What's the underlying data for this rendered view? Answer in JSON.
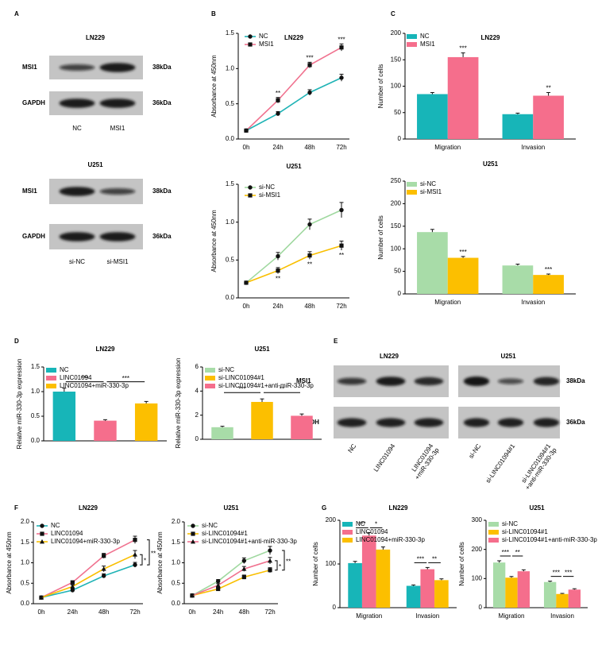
{
  "panels": [
    "A",
    "B",
    "C",
    "D",
    "E",
    "F",
    "G"
  ],
  "blots": [
    {
      "title": "LN229",
      "rows": [
        "MSI1",
        "GAPDH"
      ],
      "sizes": [
        "38kDa",
        "36kDa"
      ],
      "lanes": [
        "NC",
        "MSI1"
      ]
    },
    {
      "title": "U251",
      "rows": [
        "MSI1",
        "GAPDH"
      ],
      "sizes": [
        "38kDa",
        "36kDa"
      ],
      "lanes": [
        "si-NC",
        "si-MSI1"
      ]
    },
    {
      "title": "LN229",
      "rows": [
        "MSI1",
        "GAPDH"
      ],
      "lanes": [
        "NC",
        "LINC01094",
        "LINC01094\n+miR-330-3p"
      ]
    },
    {
      "title": "U251",
      "sizes": [
        "38kDa",
        "36kDa"
      ],
      "lanes": [
        "si-NC",
        "si-LINC01094#1",
        "si-LINC01094#1\n+anti-miR-330-3p"
      ]
    }
  ],
  "chart_data": [
    {
      "type": "line",
      "title": "LN229",
      "ylabel": "Absorbance at 450nm",
      "categories": [
        "0h",
        "24h",
        "48h",
        "72h"
      ],
      "ylim": [
        0,
        1.5
      ],
      "yticks": [
        {
          "value": 0,
          "label": "0.0"
        },
        {
          "value": 0.5,
          "label": "0.5"
        },
        {
          "value": 1,
          "label": "1.0"
        },
        {
          "value": 1.5,
          "label": "1.5"
        }
      ],
      "series": [
        {
          "name": "NC",
          "color": "#1fb3b5",
          "marker": "circle",
          "values": [
            0.12,
            0.36,
            0.66,
            0.87
          ],
          "errors": [
            0.02,
            0.03,
            0.04,
            0.05
          ]
        },
        {
          "name": "MSI1",
          "color": "#f0728f",
          "marker": "square",
          "values": [
            0.12,
            0.55,
            1.05,
            1.3
          ],
          "errors": [
            0.02,
            0.04,
            0.04,
            0.05
          ]
        }
      ],
      "annotations": [
        {
          "text": "**",
          "x": 1,
          "series": 1
        },
        {
          "text": "***",
          "x": 2,
          "series": 1
        },
        {
          "text": "***",
          "x": 3,
          "series": 1
        }
      ]
    },
    {
      "type": "line",
      "title": "U251",
      "ylabel": "Absorbance at 450nm",
      "categories": [
        "0h",
        "24h",
        "48h",
        "72h"
      ],
      "ylim": [
        0,
        1.5
      ],
      "yticks": [
        {
          "value": 0,
          "label": "0.0"
        },
        {
          "value": 0.5,
          "label": "0.5"
        },
        {
          "value": 1,
          "label": "1.0"
        },
        {
          "value": 1.5,
          "label": "1.5"
        }
      ],
      "series": [
        {
          "name": "si-NC",
          "color": "#9fd89f",
          "marker": "circle",
          "values": [
            0.2,
            0.55,
            0.97,
            1.16
          ],
          "errors": [
            0.02,
            0.05,
            0.07,
            0.1
          ]
        },
        {
          "name": "si-MSI1",
          "color": "#f9bf00",
          "marker": "square",
          "values": [
            0.2,
            0.36,
            0.56,
            0.69
          ],
          "errors": [
            0.02,
            0.04,
            0.05,
            0.06
          ]
        }
      ],
      "annotations": [
        {
          "text": "**",
          "x": 1,
          "series": 1
        },
        {
          "text": "**",
          "x": 2,
          "series": 1
        },
        {
          "text": "**",
          "x": 3,
          "series": 1
        }
      ]
    },
    {
      "type": "bar",
      "title": "LN229",
      "ylabel": "Number of cells",
      "categories": [
        "Migration",
        "Invasion"
      ],
      "ylim": [
        0,
        200
      ],
      "yticks": [
        0,
        50,
        100,
        150,
        200
      ],
      "series": [
        {
          "name": "NC",
          "color": "#17b5b8",
          "values": [
            85,
            47
          ],
          "errors": [
            3,
            2
          ]
        },
        {
          "name": "MSI1",
          "color": "#f56e8c",
          "values": [
            155,
            82
          ],
          "errors": [
            8,
            6
          ]
        }
      ],
      "annotations": [
        {
          "text": "***",
          "x": 0,
          "series": 1
        },
        {
          "text": "**",
          "x": 1,
          "series": 1
        }
      ]
    },
    {
      "type": "bar",
      "title": "U251",
      "ylabel": "Number of cells",
      "categories": [
        "Migration",
        "Invasion"
      ],
      "ylim": [
        0,
        250
      ],
      "yticks": [
        0,
        50,
        100,
        150,
        200,
        250
      ],
      "series": [
        {
          "name": "si-NC",
          "color": "#a8dca8",
          "values": [
            137,
            63
          ],
          "errors": [
            6,
            3
          ]
        },
        {
          "name": "si-MSI1",
          "color": "#fcbf00",
          "values": [
            80,
            42
          ],
          "errors": [
            3,
            2
          ]
        }
      ],
      "annotations": [
        {
          "text": "***",
          "x": 0,
          "series": 1
        },
        {
          "text": "***",
          "x": 1,
          "series": 1
        }
      ]
    },
    {
      "type": "bar",
      "title": "LN229",
      "ylabel": "Relative miR-330-3p expression",
      "categories": [
        "NC",
        "LINC01094",
        "LINC01094+miR-330-3p"
      ],
      "values": [
        1.0,
        0.41,
        0.76
      ],
      "errors": [
        0.07,
        0.02,
        0.04
      ],
      "colors": [
        "#17b5b8",
        "#f56e8c",
        "#fcbf00"
      ],
      "ylim": [
        0,
        1.5
      ],
      "yticks": [
        {
          "value": 0,
          "label": "0.0"
        },
        {
          "value": 0.5,
          "label": "0.5"
        },
        {
          "value": 1,
          "label": "1.0"
        },
        {
          "value": 1.5,
          "label": "1.5"
        }
      ],
      "annotations": [
        {
          "text": "***",
          "from": 0,
          "to": 1
        },
        {
          "text": "***",
          "from": 1,
          "to": 2
        }
      ]
    },
    {
      "type": "bar",
      "title": "U251",
      "ylabel": "Relative miR-330-3p expression",
      "categories": [
        "si-NC",
        "si-LINC01094#1",
        "si-LINC01094#1+anti-miR-330-3p"
      ],
      "values": [
        1.0,
        3.1,
        1.95
      ],
      "errors": [
        0.08,
        0.25,
        0.15
      ],
      "colors": [
        "#a8dca8",
        "#fcbf00",
        "#f56e8c"
      ],
      "ylim": [
        0,
        6
      ],
      "yticks": [
        0,
        2,
        4,
        6
      ],
      "annotations": [
        {
          "text": "***",
          "from": 0,
          "to": 1
        },
        {
          "text": "**",
          "from": 1,
          "to": 2
        }
      ]
    },
    {
      "type": "line",
      "title": "LN229",
      "ylabel": "Absorbance at 450nm",
      "categories": [
        "0h",
        "24h",
        "48h",
        "72h"
      ],
      "ylim": [
        0,
        2
      ],
      "yticks": [
        {
          "value": 0,
          "label": "0.0"
        },
        {
          "value": 0.5,
          "label": "0.5"
        },
        {
          "value": 1,
          "label": "1.0"
        },
        {
          "value": 1.5,
          "label": "1.5"
        },
        {
          "value": 2,
          "label": "2.0"
        }
      ],
      "series": [
        {
          "name": "NC",
          "color": "#1fb3b5",
          "marker": "circle",
          "values": [
            0.15,
            0.33,
            0.68,
            0.95
          ],
          "errors": [
            0.02,
            0.04,
            0.05,
            0.06
          ]
        },
        {
          "name": "LINC01094",
          "color": "#f0728f",
          "marker": "square",
          "values": [
            0.15,
            0.52,
            1.17,
            1.56
          ],
          "errors": [
            0.02,
            0.04,
            0.06,
            0.09
          ]
        },
        {
          "name": "LINC01094+miR-330-3p",
          "color": "#f9bf00",
          "marker": "triangle",
          "values": [
            0.15,
            0.42,
            0.85,
            1.2
          ],
          "errors": [
            0.02,
            0.04,
            0.07,
            0.1
          ]
        }
      ],
      "annotations": [
        {
          "text": "*",
          "from": 0,
          "to": 2
        },
        {
          "text": "**",
          "from": 0,
          "to": 1
        }
      ]
    },
    {
      "type": "line",
      "title": "U251",
      "ylabel": "Absorbance at 450nm",
      "categories": [
        "0h",
        "24h",
        "48h",
        "72h"
      ],
      "ylim": [
        0,
        2
      ],
      "yticks": [
        {
          "value": 0,
          "label": "0.0"
        },
        {
          "value": 0.5,
          "label": "0.5"
        },
        {
          "value": 1,
          "label": "1.0"
        },
        {
          "value": 1.5,
          "label": "1.5"
        },
        {
          "value": 2,
          "label": "2.0"
        }
      ],
      "series": [
        {
          "name": "si-NC",
          "color": "#9fd89f",
          "marker": "circle",
          "values": [
            0.2,
            0.55,
            1.05,
            1.3
          ],
          "errors": [
            0.02,
            0.04,
            0.07,
            0.1
          ]
        },
        {
          "name": "si-LINC01094#1",
          "color": "#f9bf00",
          "marker": "square",
          "values": [
            0.2,
            0.36,
            0.65,
            0.82
          ],
          "errors": [
            0.02,
            0.03,
            0.05,
            0.06
          ]
        },
        {
          "name": "si-LINC01094#1+anti-miR-330-3p",
          "color": "#f0728f",
          "marker": "triangle",
          "values": [
            0.2,
            0.45,
            0.85,
            1.05
          ],
          "errors": [
            0.02,
            0.04,
            0.06,
            0.08
          ]
        }
      ],
      "annotations": [
        {
          "text": "*",
          "from": 1,
          "to": 2
        },
        {
          "text": "**",
          "from": 0,
          "to": 1
        }
      ]
    },
    {
      "type": "bar",
      "title": "LN229",
      "ylabel": "Number of cells",
      "categories": [
        "Migration",
        "Invasion"
      ],
      "ylim": [
        0,
        200
      ],
      "yticks": [
        0,
        100,
        200
      ],
      "series": [
        {
          "name": "NC",
          "color": "#17b5b8",
          "values": [
            102,
            50
          ],
          "errors": [
            4,
            2
          ]
        },
        {
          "name": "LINC01094",
          "color": "#f56e8c",
          "values": [
            165,
            88
          ],
          "errors": [
            7,
            4
          ]
        },
        {
          "name": "LINC01094+miR-330-3p",
          "color": "#fcbf00",
          "values": [
            133,
            63
          ],
          "errors": [
            6,
            3
          ]
        }
      ],
      "annotations": [
        {
          "text": "***",
          "x": 0,
          "from": 0,
          "to": 1
        },
        {
          "text": "*",
          "x": 0,
          "from": 1,
          "to": 2
        },
        {
          "text": "***",
          "x": 1,
          "from": 0,
          "to": 1
        },
        {
          "text": "**",
          "x": 1,
          "from": 1,
          "to": 2
        }
      ]
    },
    {
      "type": "bar",
      "title": "U251",
      "ylabel": "Number of cells",
      "categories": [
        "Migration",
        "Invasion"
      ],
      "ylim": [
        0,
        300
      ],
      "yticks": [
        0,
        100,
        200,
        300
      ],
      "series": [
        {
          "name": "si-NC",
          "color": "#a8dca8",
          "values": [
            155,
            88
          ],
          "errors": [
            6,
            3
          ]
        },
        {
          "name": "si-LINC01094#1",
          "color": "#fcbf00",
          "values": [
            103,
            47
          ],
          "errors": [
            4,
            2
          ]
        },
        {
          "name": "si-LINC01094#1+anti-miR-330-3p",
          "color": "#f56e8c",
          "values": [
            125,
            62
          ],
          "errors": [
            5,
            3
          ]
        }
      ],
      "annotations": [
        {
          "text": "***",
          "x": 0,
          "from": 0,
          "to": 1
        },
        {
          "text": "**",
          "x": 0,
          "from": 1,
          "to": 2
        },
        {
          "text": "***",
          "x": 1,
          "from": 0,
          "to": 1
        },
        {
          "text": "***",
          "x": 1,
          "from": 1,
          "to": 2
        }
      ]
    }
  ]
}
